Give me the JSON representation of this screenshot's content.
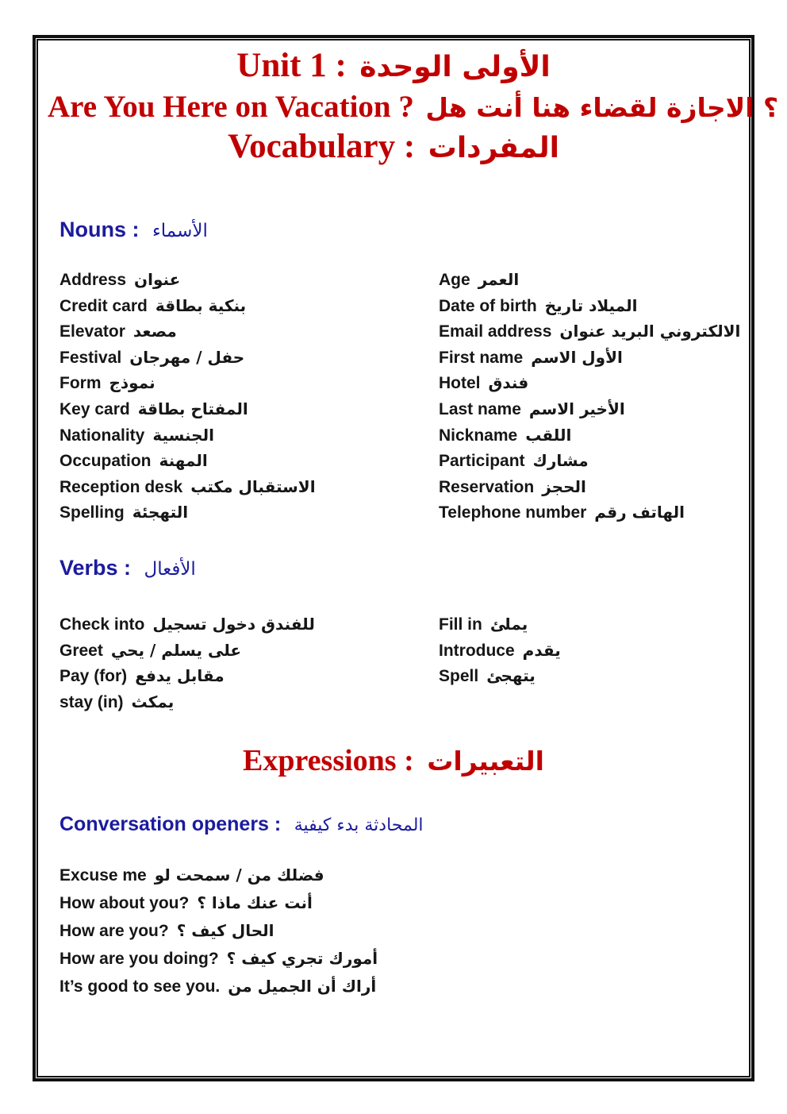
{
  "colors": {
    "title_red": "#C00000",
    "header_blue": "#1B1B9E",
    "body_black": "#161616",
    "border_black": "#101010"
  },
  "title": {
    "line1": {
      "en": "Unit 1 :",
      "ar": "الوحدة ‎الأولى"
    },
    "line2": {
      "en": "Are You Here on Vacation ?",
      "ar": "هل ‎أنت ‎هنا ‎لقضاء ‎الاجازة ‎؟"
    },
    "line3": {
      "en": "Vocabulary :",
      "ar": "المفردات"
    }
  },
  "nouns": {
    "heading": {
      "en": "Nouns :",
      "ar": "الأسماء"
    },
    "left": [
      {
        "en": "Address",
        "ar": "عنوان"
      },
      {
        "en": "Credit card",
        "ar": "بطاقة ‎بنكية"
      },
      {
        "en": "Elevator",
        "ar": "مصعد"
      },
      {
        "en": "Festival",
        "ar": "مهرجان ‎/ ‎حفل"
      },
      {
        "en": "Form",
        "ar": "نموذج"
      },
      {
        "en": "Key card",
        "ar": "بطاقة ‎المفتاح"
      },
      {
        "en": "Nationality",
        "ar": "الجنسية"
      },
      {
        "en": "Occupation",
        "ar": "المهنة"
      },
      {
        "en": "Reception desk",
        "ar": "مكتب ‎الاستقبال"
      },
      {
        "en": "Spelling",
        "ar": "التهجئة"
      }
    ],
    "right": [
      {
        "en": "Age",
        "ar": "العمر"
      },
      {
        "en": "Date of birth",
        "ar": "تاريخ ‎الميلاد"
      },
      {
        "en": "Email address",
        "ar": "عنوان ‎البريد ‎الالكتروني"
      },
      {
        "en": "First name",
        "ar": "الاسم ‎الأول"
      },
      {
        "en": "Hotel",
        "ar": "فندق"
      },
      {
        "en": "Last name",
        "ar": "الاسم ‎الأخير"
      },
      {
        "en": "Nickname",
        "ar": "اللقب"
      },
      {
        "en": "Participant",
        "ar": "مشارك"
      },
      {
        "en": "Reservation",
        "ar": "الحجز"
      },
      {
        "en": "Telephone number",
        "ar": "رقم ‎الهاتف"
      }
    ]
  },
  "verbs": {
    "heading": {
      "en": "Verbs :",
      "ar": "الأفعال"
    },
    "left": [
      {
        "en": "Check into",
        "ar": "تسجيل ‎دخول ‎للفندق"
      },
      {
        "en": "Greet",
        "ar": "يحي ‎/ ‎يسلم ‎على"
      },
      {
        "en": "Pay (for)",
        "ar": "يدفع ‎مقابل"
      },
      {
        "en": "stay (in)",
        "ar": "يمكث"
      }
    ],
    "right": [
      {
        "en": "Fill in",
        "ar": "يملئ"
      },
      {
        "en": "Introduce",
        "ar": "يقدم"
      },
      {
        "en": "Spell",
        "ar": "يتهجئ"
      }
    ]
  },
  "expressions": {
    "heading": {
      "en": "Expressions :",
      "ar": "التعبيرات"
    },
    "openers_heading": {
      "en": "Conversation openers :",
      "ar": "كيفية ‎بدء ‎المحادثة"
    },
    "openers": [
      {
        "en": "Excuse me",
        "ar": "لو ‎سمحت ‎/ ‎من ‎فضلك"
      },
      {
        "en": "How about you?",
        "ar": "؟ ‎ماذا ‎عنك ‎أنت"
      },
      {
        "en": "How are you?",
        "ar": "؟ ‎كيف ‎الحال"
      },
      {
        "en": "How are you doing?",
        "ar": "؟ ‎كيف ‎تجري ‎أمورك"
      },
      {
        "en": "It’s good to see you.",
        "ar": "من ‎الجميل ‎أن ‎أراك"
      }
    ]
  }
}
